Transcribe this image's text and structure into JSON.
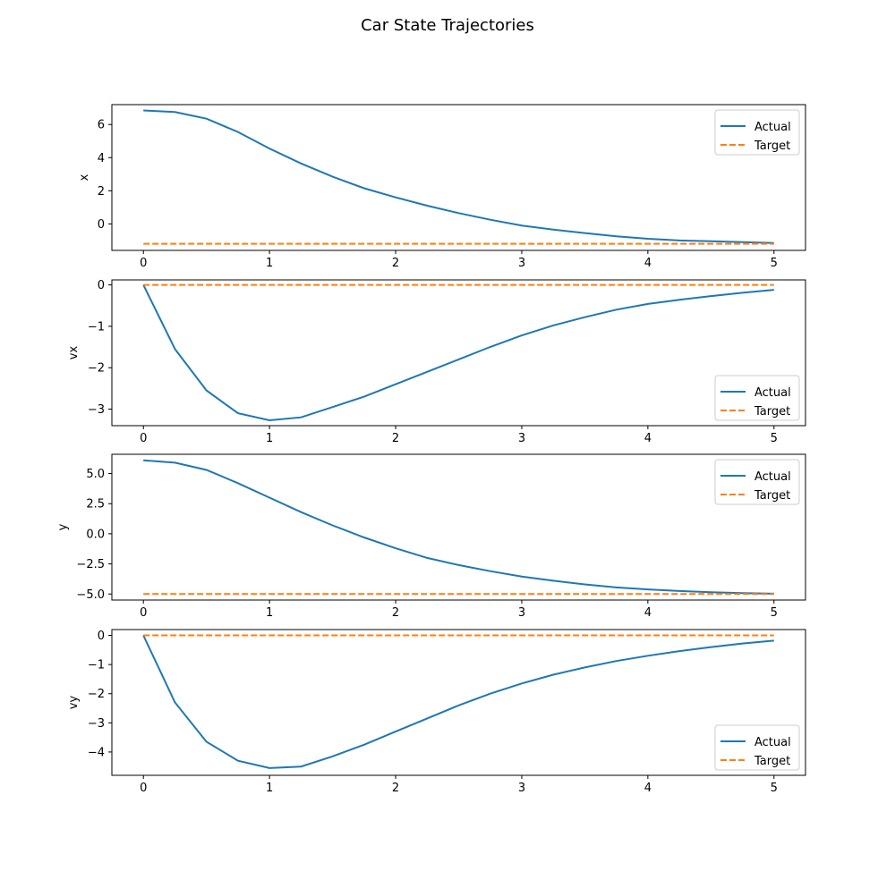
{
  "title": "Car State Trajectories",
  "chart_data": [
    {
      "type": "line",
      "ylabel": "x",
      "xlim": [
        -0.25,
        5.25
      ],
      "ylim": [
        -1.6,
        7.2
      ],
      "xticks": [
        0,
        1,
        2,
        3,
        4,
        5
      ],
      "xtick_labels": [
        "0",
        "1",
        "2",
        "3",
        "4",
        "5"
      ],
      "yticks": [
        0,
        2,
        4,
        6
      ],
      "ytick_labels": [
        "0",
        "2",
        "4",
        "6"
      ],
      "legend_position": "upper right",
      "series": [
        {
          "name": "Actual",
          "color": "#1f77b4",
          "style": "solid",
          "x": [
            0,
            0.25,
            0.5,
            0.75,
            1.0,
            1.25,
            1.5,
            1.75,
            2.0,
            2.25,
            2.5,
            2.75,
            3.0,
            3.25,
            3.5,
            3.75,
            4.0,
            4.25,
            4.5,
            4.75,
            5.0
          ],
          "values": [
            6.85,
            6.75,
            6.35,
            5.55,
            4.55,
            3.65,
            2.85,
            2.15,
            1.6,
            1.1,
            0.65,
            0.25,
            -0.1,
            -0.35,
            -0.55,
            -0.75,
            -0.9,
            -1.0,
            -1.05,
            -1.1,
            -1.15
          ]
        },
        {
          "name": "Target",
          "color": "#ff7f0e",
          "style": "dashed",
          "x": [
            0,
            5
          ],
          "values": [
            -1.2,
            -1.2
          ]
        }
      ]
    },
    {
      "type": "line",
      "ylabel": "vx",
      "xlim": [
        -0.25,
        5.25
      ],
      "ylim": [
        -3.4,
        0.12
      ],
      "xticks": [
        0,
        1,
        2,
        3,
        4,
        5
      ],
      "xtick_labels": [
        "0",
        "1",
        "2",
        "3",
        "4",
        "5"
      ],
      "yticks": [
        0,
        -1,
        -2,
        -3
      ],
      "ytick_labels": [
        "0",
        "−1",
        "−2",
        "−3"
      ],
      "legend_position": "lower right",
      "series": [
        {
          "name": "Actual",
          "color": "#1f77b4",
          "style": "solid",
          "x": [
            0,
            0.25,
            0.5,
            0.75,
            1.0,
            1.25,
            1.5,
            1.75,
            2.0,
            2.25,
            2.5,
            2.75,
            3.0,
            3.25,
            3.5,
            3.75,
            4.0,
            4.25,
            4.5,
            4.75,
            5.0
          ],
          "values": [
            0.0,
            -1.55,
            -2.55,
            -3.1,
            -3.27,
            -3.2,
            -2.95,
            -2.7,
            -2.4,
            -2.1,
            -1.8,
            -1.5,
            -1.22,
            -0.98,
            -0.78,
            -0.6,
            -0.46,
            -0.36,
            -0.27,
            -0.19,
            -0.12
          ]
        },
        {
          "name": "Target",
          "color": "#ff7f0e",
          "style": "dashed",
          "x": [
            0,
            5
          ],
          "values": [
            0,
            0
          ]
        }
      ]
    },
    {
      "type": "line",
      "ylabel": "y",
      "xlim": [
        -0.25,
        5.25
      ],
      "ylim": [
        -5.5,
        6.6
      ],
      "xticks": [
        0,
        1,
        2,
        3,
        4,
        5
      ],
      "xtick_labels": [
        "0",
        "1",
        "2",
        "3",
        "4",
        "5"
      ],
      "yticks": [
        5.0,
        2.5,
        0.0,
        -2.5,
        -5.0
      ],
      "ytick_labels": [
        "5.0",
        "2.5",
        "0.0",
        "−2.5",
        "−5.0"
      ],
      "legend_position": "upper right",
      "series": [
        {
          "name": "Actual",
          "color": "#1f77b4",
          "style": "solid",
          "x": [
            0,
            0.25,
            0.5,
            0.75,
            1.0,
            1.25,
            1.5,
            1.75,
            2.0,
            2.25,
            2.5,
            2.75,
            3.0,
            3.25,
            3.5,
            3.75,
            4.0,
            4.25,
            4.5,
            4.75,
            5.0
          ],
          "values": [
            6.1,
            5.9,
            5.3,
            4.2,
            3.0,
            1.8,
            0.7,
            -0.3,
            -1.2,
            -2.0,
            -2.6,
            -3.1,
            -3.55,
            -3.9,
            -4.2,
            -4.45,
            -4.62,
            -4.75,
            -4.85,
            -4.92,
            -4.97
          ]
        },
        {
          "name": "Target",
          "color": "#ff7f0e",
          "style": "dashed",
          "x": [
            0,
            5
          ],
          "values": [
            -5,
            -5
          ]
        }
      ]
    },
    {
      "type": "line",
      "ylabel": "vy",
      "xlim": [
        -0.25,
        5.25
      ],
      "ylim": [
        -4.8,
        0.2
      ],
      "xticks": [
        0,
        1,
        2,
        3,
        4,
        5
      ],
      "xtick_labels": [
        "0",
        "1",
        "2",
        "3",
        "4",
        "5"
      ],
      "yticks": [
        0,
        -1,
        -2,
        -3,
        -4
      ],
      "ytick_labels": [
        "0",
        "−1",
        "−2",
        "−3",
        "−4"
      ],
      "legend_position": "lower right",
      "series": [
        {
          "name": "Actual",
          "color": "#1f77b4",
          "style": "solid",
          "x": [
            0,
            0.25,
            0.5,
            0.75,
            1.0,
            1.25,
            1.5,
            1.75,
            2.0,
            2.25,
            2.5,
            2.75,
            3.0,
            3.25,
            3.5,
            3.75,
            4.0,
            4.25,
            4.5,
            4.75,
            5.0
          ],
          "values": [
            0.0,
            -2.3,
            -3.65,
            -4.3,
            -4.55,
            -4.5,
            -4.15,
            -3.75,
            -3.3,
            -2.85,
            -2.4,
            -2.0,
            -1.65,
            -1.35,
            -1.1,
            -0.88,
            -0.7,
            -0.54,
            -0.4,
            -0.28,
            -0.18
          ]
        },
        {
          "name": "Target",
          "color": "#ff7f0e",
          "style": "dashed",
          "x": [
            0,
            5
          ],
          "values": [
            0,
            0
          ]
        }
      ]
    }
  ]
}
